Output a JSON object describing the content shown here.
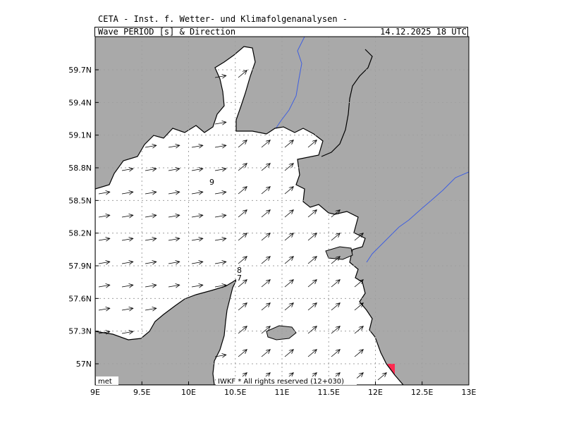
{
  "header": {
    "organization": "CETA - Inst. f. Wetter- und Klimafolgenanalysen -",
    "product": "Wave_PERIOD_[s]_&_Direction",
    "valid_time": "14.12.2025 18 UTC"
  },
  "footer": {
    "left_credit": "met",
    "right_credit": "IWKF * All rights reserved (12+030)"
  },
  "axes": {
    "lon_labels": [
      "9E",
      "9.5E",
      "10E",
      "10.5E",
      "11E",
      "11.5E",
      "12E",
      "12.5E",
      "13E"
    ],
    "lat_labels": [
      "57N",
      "57.3N",
      "57.6N",
      "57.9N",
      "58.2N",
      "58.5N",
      "58.8N",
      "59.1N",
      "59.4N",
      "59.7N"
    ]
  },
  "contour_labels": [
    "9",
    "8",
    "7"
  ],
  "colors": {
    "land": "#a9a9a9",
    "sea": "#ffffff",
    "river": "#3f5fe0",
    "period_5": "#ccff00",
    "period_7": "#ffa500",
    "period_8": "#ff8c00",
    "period_9": "#ff2a50",
    "period_10": "#ff0a70"
  }
}
